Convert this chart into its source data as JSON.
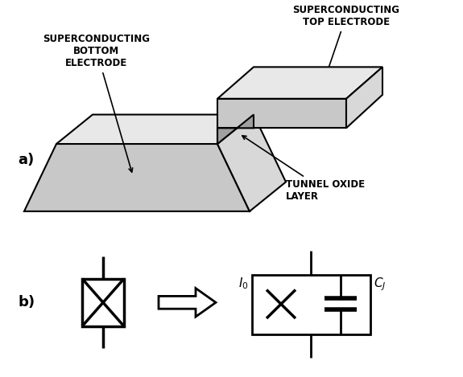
{
  "bg_color": "#ffffff",
  "line_color": "#000000",
  "label_a": "a)",
  "label_b": "b)",
  "text_bottom_electrode": "SUPERCONDUCTING\nBOTTOM\nELECTRODE",
  "text_top_electrode": "SUPERCONDUCTING\nTOP ELECTRODE",
  "text_tunnel": "TUNNEL OXIDE\nLAYER",
  "fontsize_labels": 8.5,
  "fontsize_ab": 13,
  "fontsize_circuit_labels": 11
}
